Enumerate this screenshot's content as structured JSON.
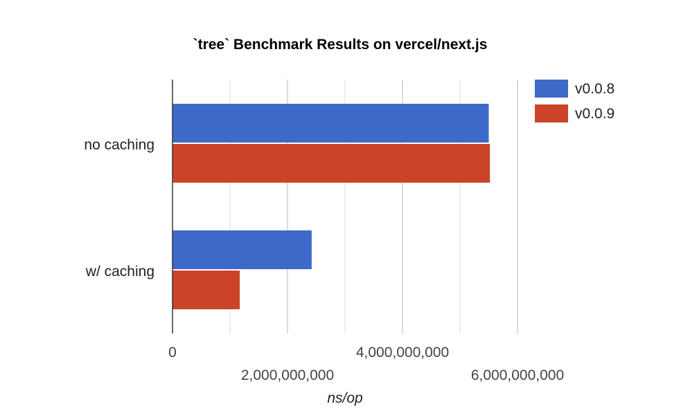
{
  "chart_data": {
    "type": "bar",
    "orientation": "horizontal",
    "title": "`tree` Benchmark Results on vercel/next.js",
    "xlabel": "ns/op",
    "ylabel": "",
    "categories": [
      "no caching",
      "w/ caching"
    ],
    "series": [
      {
        "name": "v0.0.8",
        "color": "#3d69c9",
        "values": [
          5500000000,
          2420000000
        ]
      },
      {
        "name": "v0.0.9",
        "color": "#cc4428",
        "values": [
          5520000000,
          1170000000
        ]
      }
    ],
    "xlim": [
      0,
      6000000000
    ],
    "xticks": [
      {
        "value": 0,
        "label": "0"
      },
      {
        "value": 2000000000,
        "label": "2,000,000,000"
      },
      {
        "value": 4000000000,
        "label": "4,000,000,000"
      },
      {
        "value": 6000000000,
        "label": "6,000,000,000"
      }
    ],
    "grid": true,
    "legend_position": "right"
  }
}
